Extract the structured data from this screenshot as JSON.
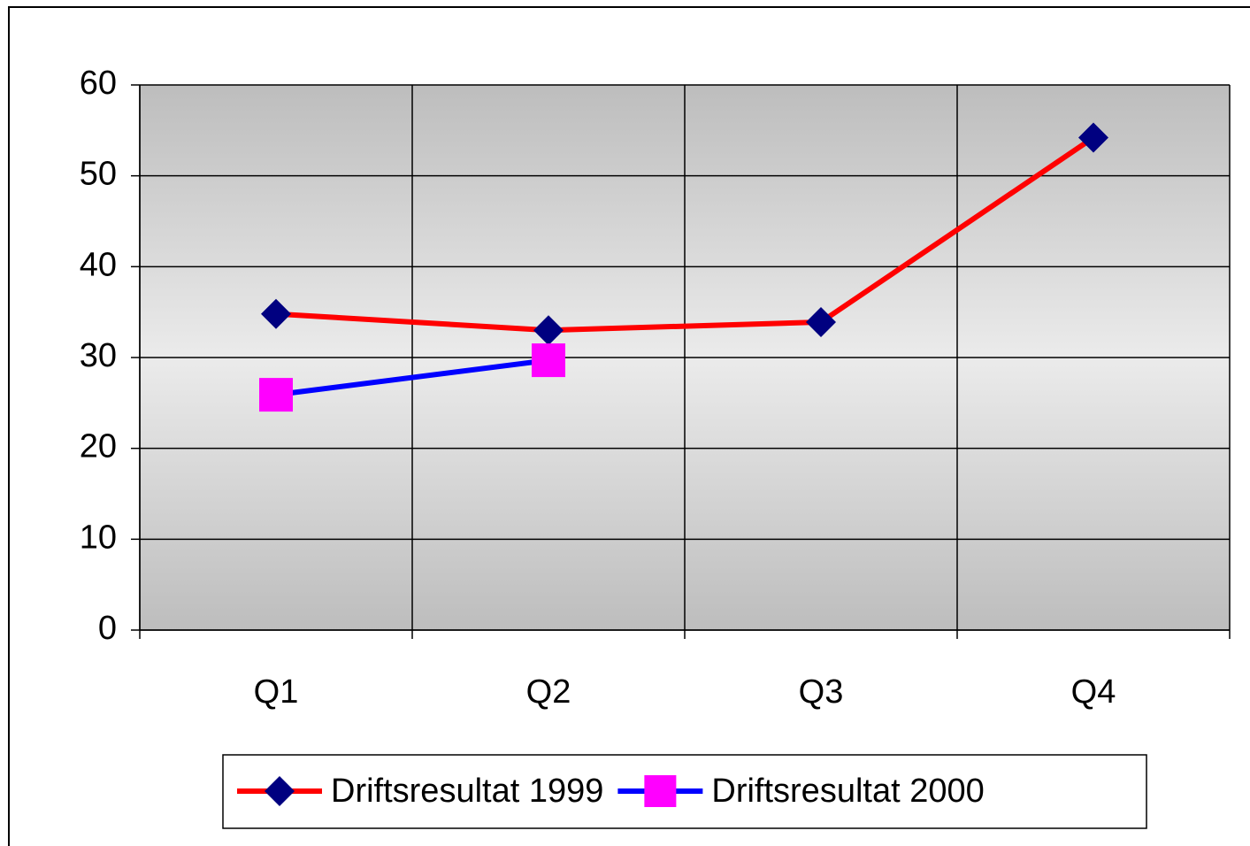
{
  "chart_data": {
    "type": "line",
    "categories": [
      "Q1",
      "Q2",
      "Q3",
      "Q4"
    ],
    "series": [
      {
        "name": "Driftsresultat 1999",
        "color": "#ff0000",
        "marker": "diamond",
        "marker_color": "#000080",
        "values": [
          34.8,
          33.0,
          33.9,
          54.2
        ]
      },
      {
        "name": "Driftsresultat 2000",
        "color": "#0000ff",
        "marker": "square",
        "marker_color": "#ff00ff",
        "values": [
          25.9,
          29.7,
          null,
          null
        ]
      }
    ],
    "ylim": [
      0,
      60
    ],
    "yticks": [
      0,
      10,
      20,
      30,
      40,
      50,
      60
    ],
    "grid": true,
    "legend": "bottom"
  }
}
